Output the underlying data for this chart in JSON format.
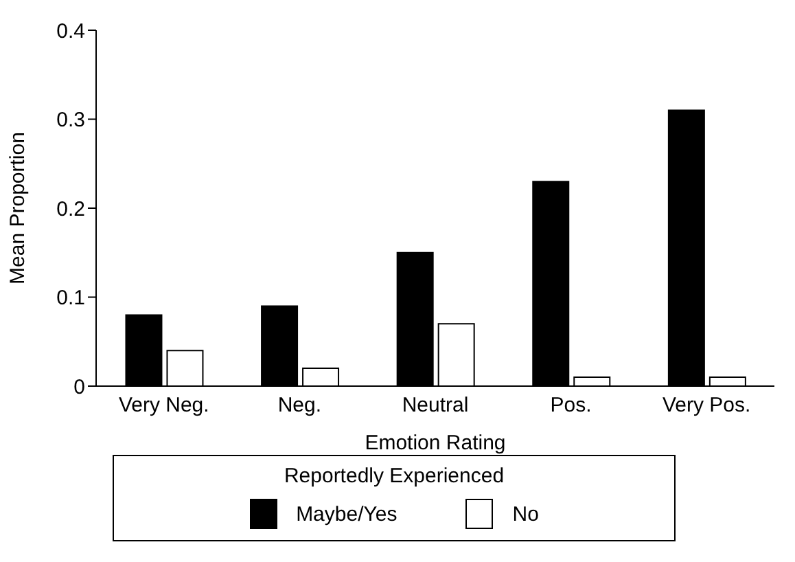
{
  "chart_data": {
    "type": "bar",
    "categories": [
      "Very Neg.",
      "Neg.",
      "Neutral",
      "Pos.",
      "Very Pos."
    ],
    "series": [
      {
        "name": "Maybe/Yes",
        "color": "#000000",
        "values": [
          0.08,
          0.09,
          0.15,
          0.23,
          0.31
        ]
      },
      {
        "name": "No",
        "color": "#ffffff",
        "values": [
          0.04,
          0.02,
          0.07,
          0.01,
          0.01
        ]
      }
    ],
    "xlabel": "Emotion Rating",
    "ylabel": "Mean Proportion",
    "legend_title": "Reportedly Experienced",
    "ylim": [
      0,
      0.4
    ],
    "yticks": [
      0,
      0.1,
      0.2,
      0.3,
      0.4
    ],
    "grid": false,
    "legend": "bottom"
  }
}
